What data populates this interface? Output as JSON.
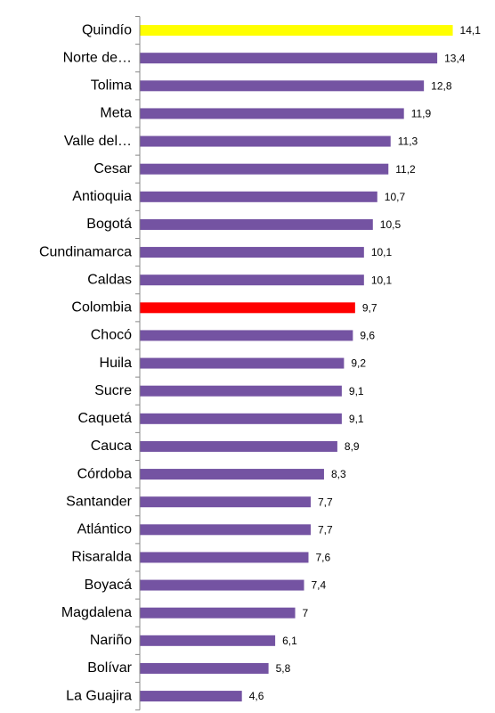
{
  "chart_data": {
    "type": "bar",
    "orientation": "horizontal",
    "categories": [
      "Quindío",
      "Norte de…",
      "Tolima",
      "Meta",
      "Valle del…",
      "Cesar",
      "Antioquia",
      "Bogotá",
      "Cundinamarca",
      "Caldas",
      "Colombia",
      "Chocó",
      "Huila",
      "Sucre",
      "Caquetá",
      "Cauca",
      "Córdoba",
      "Santander",
      "Atlántico",
      "Risaralda",
      "Boyacá",
      "Magdalena",
      "Nariño",
      "Bolívar",
      "La Guajira"
    ],
    "values": [
      14.1,
      13.4,
      12.8,
      11.9,
      11.3,
      11.2,
      10.7,
      10.5,
      10.1,
      10.1,
      9.7,
      9.6,
      9.2,
      9.1,
      9.1,
      8.9,
      8.3,
      7.7,
      7.7,
      7.6,
      7.4,
      7,
      6.1,
      5.8,
      4.6
    ],
    "value_labels": [
      "14,1",
      "13,4",
      "12,8",
      "11,9",
      "11,3",
      "11,2",
      "10,7",
      "10,5",
      "10,1",
      "10,1",
      "9,7",
      "9,6",
      "9,2",
      "9,1",
      "9,1",
      "8,9",
      "8,3",
      "7,7",
      "7,7",
      "7,6",
      "7,4",
      "7",
      "6,1",
      "5,8",
      "4,6"
    ],
    "colors": [
      "#ffff00",
      "#7453a2",
      "#7453a2",
      "#7453a2",
      "#7453a2",
      "#7453a2",
      "#7453a2",
      "#7453a2",
      "#7453a2",
      "#7453a2",
      "#ff0000",
      "#7453a2",
      "#7453a2",
      "#7453a2",
      "#7453a2",
      "#7453a2",
      "#7453a2",
      "#7453a2",
      "#7453a2",
      "#7453a2",
      "#7453a2",
      "#7453a2",
      "#7453a2",
      "#7453a2",
      "#7453a2"
    ],
    "xlim": [
      0,
      15
    ]
  }
}
